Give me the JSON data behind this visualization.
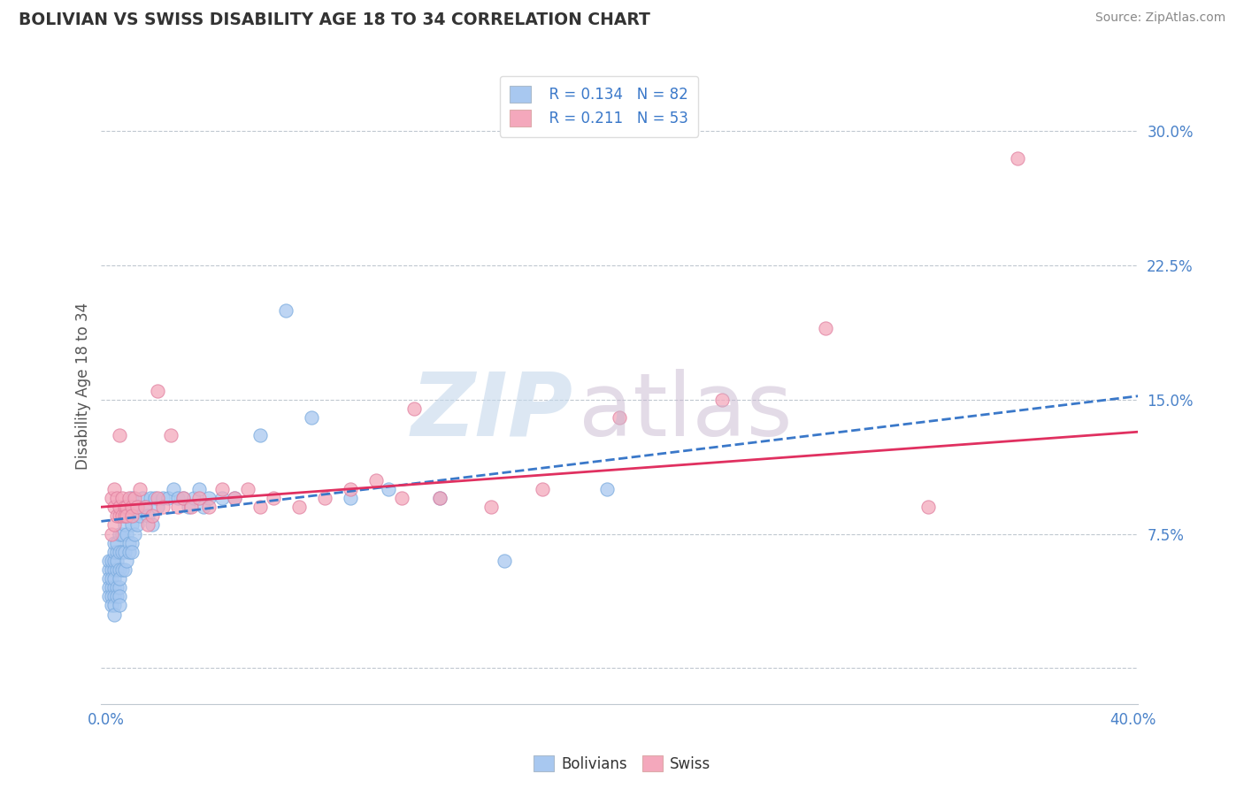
{
  "title": "BOLIVIAN VS SWISS DISABILITY AGE 18 TO 34 CORRELATION CHART",
  "source": "Source: ZipAtlas.com",
  "ylabel": "Disability Age 18 to 34",
  "xlim": [
    -0.002,
    0.402
  ],
  "ylim": [
    -0.02,
    0.335
  ],
  "yticks": [
    0.0,
    0.075,
    0.15,
    0.225,
    0.3
  ],
  "ytick_labels": [
    "",
    "7.5%",
    "15.0%",
    "22.5%",
    "30.0%"
  ],
  "xticks": [
    0.0,
    0.08,
    0.16,
    0.24,
    0.32,
    0.4
  ],
  "xtick_labels": [
    "0.0%",
    "",
    "",
    "",
    "",
    "40.0%"
  ],
  "legend_R_blue": "R = 0.134",
  "legend_N_blue": "N = 82",
  "legend_R_pink": "R = 0.211",
  "legend_N_pink": "N = 53",
  "blue_color": "#a8c8f0",
  "pink_color": "#f4a8bc",
  "blue_line_color": "#3a78c9",
  "pink_line_color": "#e03060",
  "blue_line_start_y": 0.082,
  "blue_line_end_y": 0.152,
  "pink_line_start_y": 0.09,
  "pink_line_end_y": 0.132,
  "bolivians_x": [
    0.001,
    0.001,
    0.001,
    0.001,
    0.001,
    0.002,
    0.002,
    0.002,
    0.002,
    0.002,
    0.002,
    0.003,
    0.003,
    0.003,
    0.003,
    0.003,
    0.003,
    0.003,
    0.003,
    0.003,
    0.004,
    0.004,
    0.004,
    0.004,
    0.004,
    0.004,
    0.005,
    0.005,
    0.005,
    0.005,
    0.005,
    0.005,
    0.005,
    0.006,
    0.006,
    0.006,
    0.007,
    0.007,
    0.007,
    0.008,
    0.008,
    0.008,
    0.009,
    0.009,
    0.009,
    0.01,
    0.01,
    0.01,
    0.01,
    0.01,
    0.011,
    0.011,
    0.012,
    0.012,
    0.013,
    0.014,
    0.015,
    0.016,
    0.017,
    0.018,
    0.019,
    0.02,
    0.022,
    0.024,
    0.026,
    0.028,
    0.03,
    0.032,
    0.034,
    0.036,
    0.038,
    0.04,
    0.045,
    0.05,
    0.06,
    0.07,
    0.08,
    0.095,
    0.11,
    0.13,
    0.155,
    0.195
  ],
  "bolivians_y": [
    0.055,
    0.06,
    0.05,
    0.045,
    0.04,
    0.055,
    0.06,
    0.045,
    0.05,
    0.04,
    0.035,
    0.055,
    0.06,
    0.065,
    0.045,
    0.04,
    0.05,
    0.035,
    0.03,
    0.07,
    0.065,
    0.055,
    0.06,
    0.045,
    0.04,
    0.07,
    0.075,
    0.065,
    0.055,
    0.045,
    0.05,
    0.04,
    0.035,
    0.075,
    0.065,
    0.055,
    0.08,
    0.065,
    0.055,
    0.085,
    0.075,
    0.06,
    0.085,
    0.07,
    0.065,
    0.09,
    0.08,
    0.07,
    0.065,
    0.095,
    0.085,
    0.075,
    0.09,
    0.08,
    0.085,
    0.095,
    0.09,
    0.085,
    0.095,
    0.08,
    0.095,
    0.09,
    0.095,
    0.095,
    0.1,
    0.095,
    0.095,
    0.09,
    0.095,
    0.1,
    0.09,
    0.095,
    0.095,
    0.095,
    0.13,
    0.2,
    0.14,
    0.095,
    0.1,
    0.095,
    0.06,
    0.1
  ],
  "swiss_x": [
    0.002,
    0.002,
    0.003,
    0.003,
    0.003,
    0.004,
    0.004,
    0.005,
    0.005,
    0.005,
    0.006,
    0.006,
    0.007,
    0.007,
    0.008,
    0.008,
    0.009,
    0.01,
    0.01,
    0.011,
    0.012,
    0.013,
    0.015,
    0.016,
    0.018,
    0.02,
    0.022,
    0.025,
    0.028,
    0.03,
    0.033,
    0.036,
    0.04,
    0.045,
    0.05,
    0.055,
    0.06,
    0.065,
    0.075,
    0.085,
    0.095,
    0.105,
    0.115,
    0.13,
    0.15,
    0.17,
    0.2,
    0.24,
    0.28,
    0.32,
    0.355,
    0.02,
    0.12
  ],
  "swiss_y": [
    0.075,
    0.095,
    0.08,
    0.09,
    0.1,
    0.085,
    0.095,
    0.085,
    0.09,
    0.13,
    0.085,
    0.095,
    0.09,
    0.085,
    0.09,
    0.085,
    0.095,
    0.09,
    0.085,
    0.095,
    0.09,
    0.1,
    0.09,
    0.08,
    0.085,
    0.095,
    0.09,
    0.13,
    0.09,
    0.095,
    0.09,
    0.095,
    0.09,
    0.1,
    0.095,
    0.1,
    0.09,
    0.095,
    0.09,
    0.095,
    0.1,
    0.105,
    0.095,
    0.095,
    0.09,
    0.1,
    0.14,
    0.15,
    0.19,
    0.09,
    0.285,
    0.155,
    0.145
  ]
}
